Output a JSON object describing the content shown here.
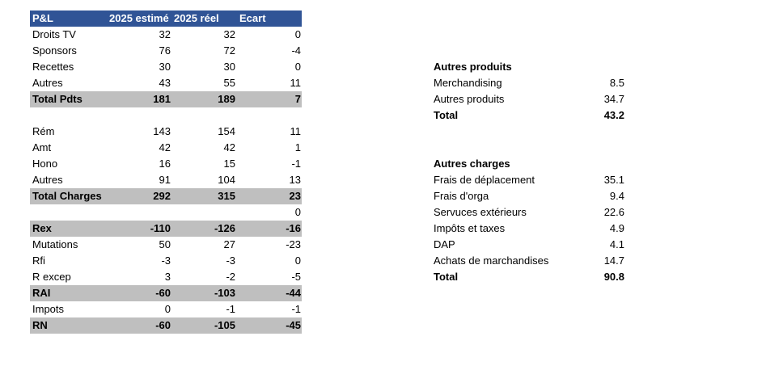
{
  "pnl": {
    "header": [
      "P&L",
      "2025 estimé",
      "2025 réel",
      "Ecart"
    ],
    "groups": [
      [
        {
          "label": "Droits TV",
          "estime": 32,
          "reel": 32,
          "ecart": 0
        },
        {
          "label": "Sponsors",
          "estime": 76,
          "reel": 72,
          "ecart": -4
        },
        {
          "label": "Recettes",
          "estime": 30,
          "reel": 30,
          "ecart": 0
        },
        {
          "label": "Autres",
          "estime": 43,
          "reel": 55,
          "ecart": 11
        },
        {
          "label": "Total Pdts",
          "estime": 181,
          "reel": 189,
          "ecart": 7,
          "total": true
        }
      ],
      [
        {
          "label": "Rém",
          "estime": 143,
          "reel": 154,
          "ecart": 11
        },
        {
          "label": "Amt",
          "estime": 42,
          "reel": 42,
          "ecart": 1
        },
        {
          "label": "Hono",
          "estime": 16,
          "reel": 15,
          "ecart": -1
        },
        {
          "label": "Autres",
          "estime": 91,
          "reel": 104,
          "ecart": 13
        },
        {
          "label": "Total Charges",
          "estime": 292,
          "reel": 315,
          "ecart": 23,
          "total": true
        },
        {
          "ecart": 0
        },
        {
          "label": "Rex",
          "estime": -110,
          "reel": -126,
          "ecart": -16,
          "total": true
        },
        {
          "label": "Mutations",
          "estime": 50,
          "reel": 27,
          "ecart": -23
        },
        {
          "label": "Rfi",
          "estime": -3,
          "reel": -3,
          "ecart": 0
        },
        {
          "label": "R excep",
          "estime": 3,
          "reel": -2,
          "ecart": -5
        },
        {
          "label": "RAI",
          "estime": -60,
          "reel": -103,
          "ecart": -44,
          "total": true
        },
        {
          "label": "Impots",
          "estime": 0,
          "reel": -1,
          "ecart": -1
        },
        {
          "label": "RN",
          "estime": -60,
          "reel": -105,
          "ecart": -45,
          "total": true
        }
      ]
    ]
  },
  "autres_produits": {
    "title": "Autres produits",
    "rows": [
      {
        "label": "Merchandising",
        "value": 8.5
      },
      {
        "label": "Autres produits",
        "value": 34.7
      }
    ],
    "total": {
      "label": "Total",
      "value": 43.2
    }
  },
  "autres_charges": {
    "title": "Autres charges",
    "rows": [
      {
        "label": "Frais de déplacement",
        "value": 35.1
      },
      {
        "label": "Frais d'orga",
        "value": 9.4
      },
      {
        "label": "Servuces extérieurs",
        "value": 22.6
      },
      {
        "label": "Impôts et taxes",
        "value": 4.9
      },
      {
        "label": "DAP",
        "value": 4.1
      },
      {
        "label": "Achats de marchandises",
        "value": 14.7
      }
    ],
    "total": {
      "label": "Total",
      "value": 90.8
    }
  }
}
